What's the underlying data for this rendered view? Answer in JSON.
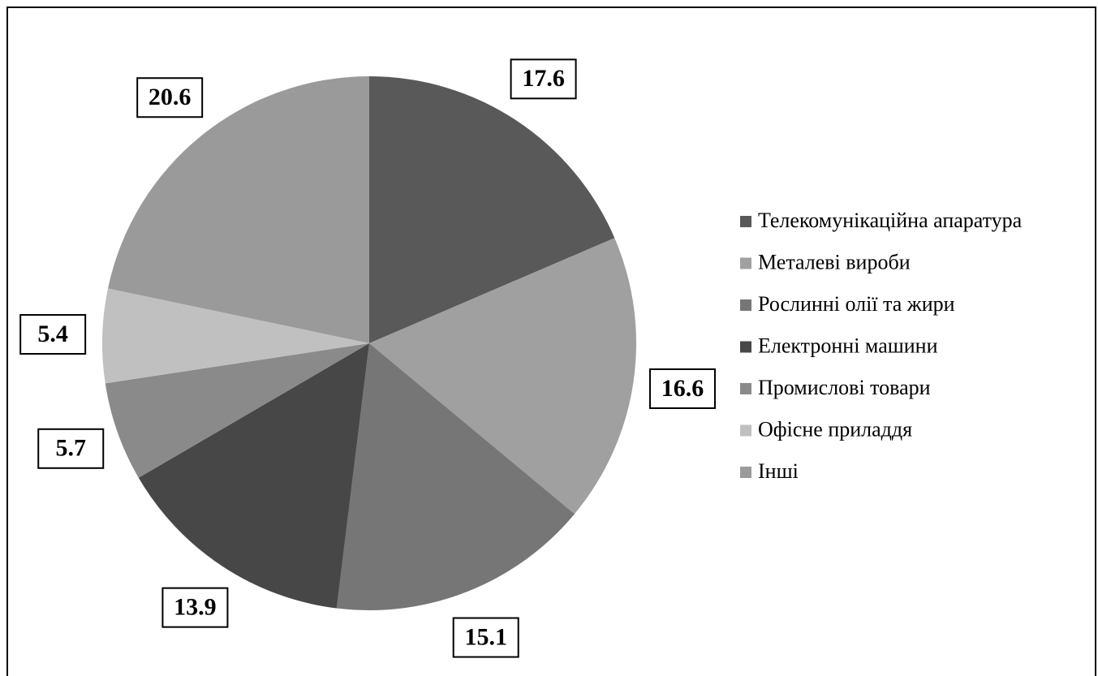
{
  "chart_data": {
    "type": "pie",
    "categories": [
      "Телекомунікаційна апаратура",
      "Металеві вироби",
      "Рослинні олії та жири",
      "Електронні машини",
      "Промислові товари",
      "Офісне приладдя",
      "Інші"
    ],
    "values": [
      17.6,
      16.6,
      15.1,
      13.9,
      5.7,
      5.4,
      20.6
    ],
    "colors": [
      "#595959",
      "#a0a0a0",
      "#767676",
      "#474747",
      "#8a8a8a",
      "#c0c0c0",
      "#9a9a9a"
    ],
    "legend": "right"
  }
}
